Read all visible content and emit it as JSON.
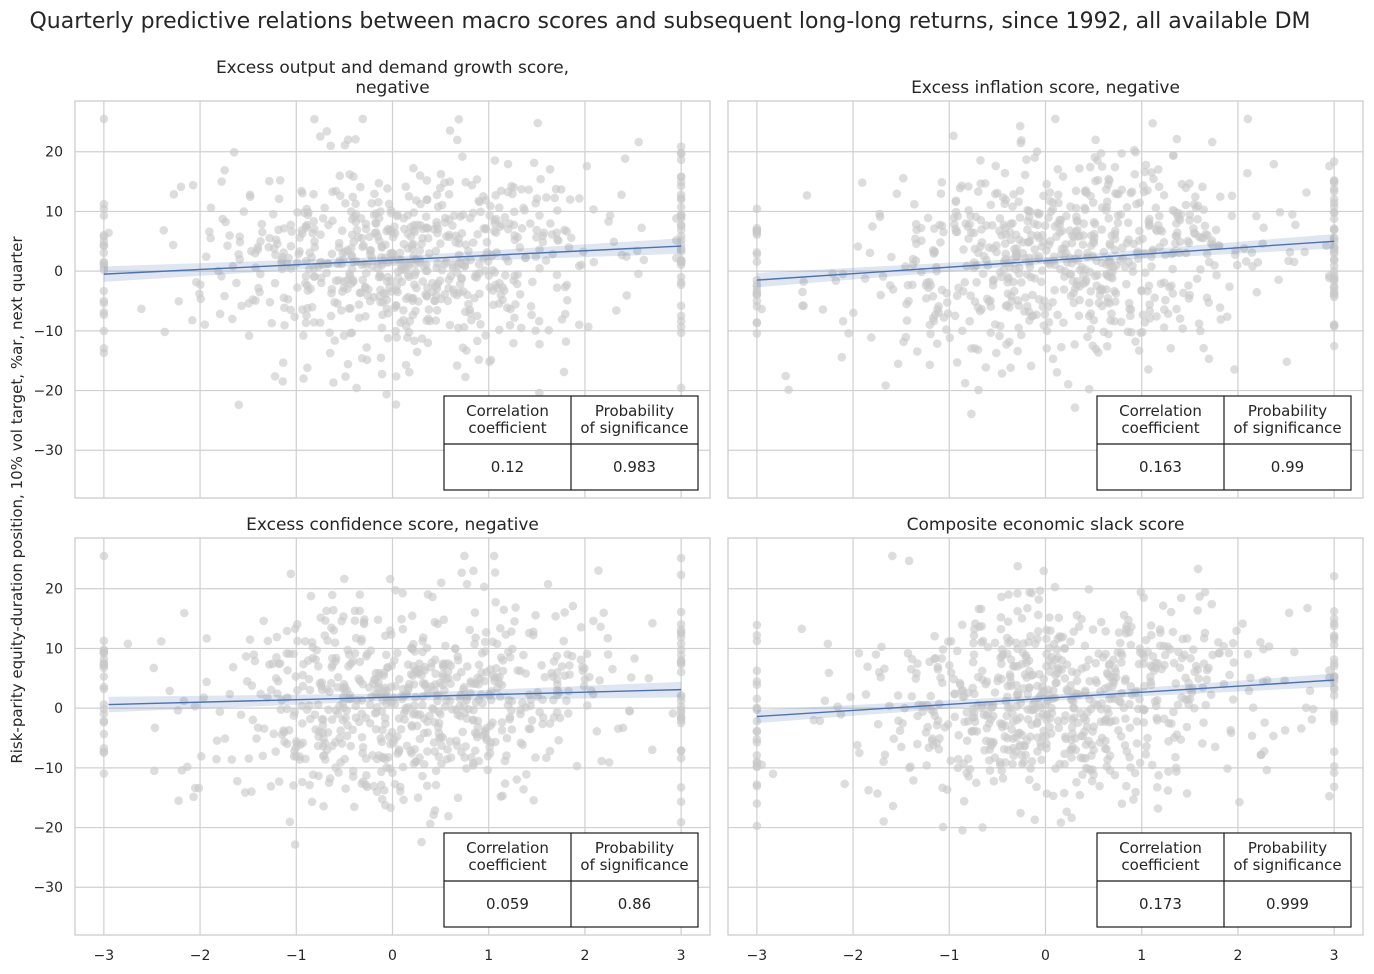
{
  "suptitle": "Quarterly predictive relations between macro scores and subsequent long-long returns, since 1992, all available DM",
  "ylabel": "Risk-parity equity-duration position, 10% vol target, %ar, next quarter",
  "colors": {
    "points": "#c8c8c8",
    "regression": "#4c72b0",
    "ci": "#4c72b0",
    "grid": "#d0d0d0"
  },
  "table_headers": {
    "col1_line1": "Correlation",
    "col1_line2": "coefficient",
    "col2_line1": "Probability",
    "col2_line2": "of significance"
  },
  "chart_data": [
    {
      "type": "scatter",
      "title_lines": [
        "Excess output and demand growth score,",
        "negative"
      ],
      "xlim": [
        -3.3,
        3.3
      ],
      "ylim": [
        -38,
        28.5
      ],
      "xticks": [
        -3,
        -2,
        -1,
        0,
        1,
        2,
        3
      ],
      "yticks": [
        -30,
        -20,
        -10,
        0,
        10,
        20
      ],
      "x_ticklabels_visible": false,
      "regression": {
        "x": [
          -3,
          3
        ],
        "y": [
          -0.5,
          4.2
        ],
        "ci": 1.3
      },
      "correlation": "0.12",
      "probability": "0.983",
      "seed": 11,
      "slope": 0.78,
      "intercept": 1.8
    },
    {
      "type": "scatter",
      "title_lines": [
        "Excess inflation score, negative"
      ],
      "xlim": [
        -3.3,
        3.3
      ],
      "ylim": [
        -38,
        28.5
      ],
      "xticks": [
        -3,
        -2,
        -1,
        0,
        1,
        2,
        3
      ],
      "yticks": [
        -30,
        -20,
        -10,
        0,
        10,
        20
      ],
      "x_ticklabels_visible": false,
      "regression": {
        "x": [
          -3,
          3
        ],
        "y": [
          -1.5,
          5.0
        ],
        "ci": 1.2
      },
      "correlation": "0.163",
      "probability": "0.99",
      "seed": 23,
      "slope": 1.08,
      "intercept": 1.7
    },
    {
      "type": "scatter",
      "title_lines": [
        "Excess confidence score, negative"
      ],
      "xlim": [
        -3.3,
        3.3
      ],
      "ylim": [
        -38,
        28.5
      ],
      "xticks": [
        -3,
        -2,
        -1,
        0,
        1,
        2,
        3
      ],
      "yticks": [
        -30,
        -20,
        -10,
        0,
        10,
        20
      ],
      "x_ticklabels_visible": true,
      "regression": {
        "x": [
          -2.95,
          3
        ],
        "y": [
          0.6,
          3.1
        ],
        "ci": 1.3
      },
      "correlation": "0.059",
      "probability": "0.86",
      "seed": 37,
      "slope": 0.42,
      "intercept": 1.9
    },
    {
      "type": "scatter",
      "title_lines": [
        "Composite economic slack score"
      ],
      "xlim": [
        -3.3,
        3.3
      ],
      "ylim": [
        -38,
        28.5
      ],
      "xticks": [
        -3,
        -2,
        -1,
        0,
        1,
        2,
        3
      ],
      "yticks": [
        -30,
        -20,
        -10,
        0,
        10,
        20
      ],
      "x_ticklabels_visible": true,
      "regression": {
        "x": [
          -3,
          3
        ],
        "y": [
          -1.4,
          4.7
        ],
        "ci": 1.1
      },
      "correlation": "0.173",
      "probability": "0.999",
      "seed": 53,
      "slope": 1.02,
      "intercept": 1.6
    }
  ]
}
